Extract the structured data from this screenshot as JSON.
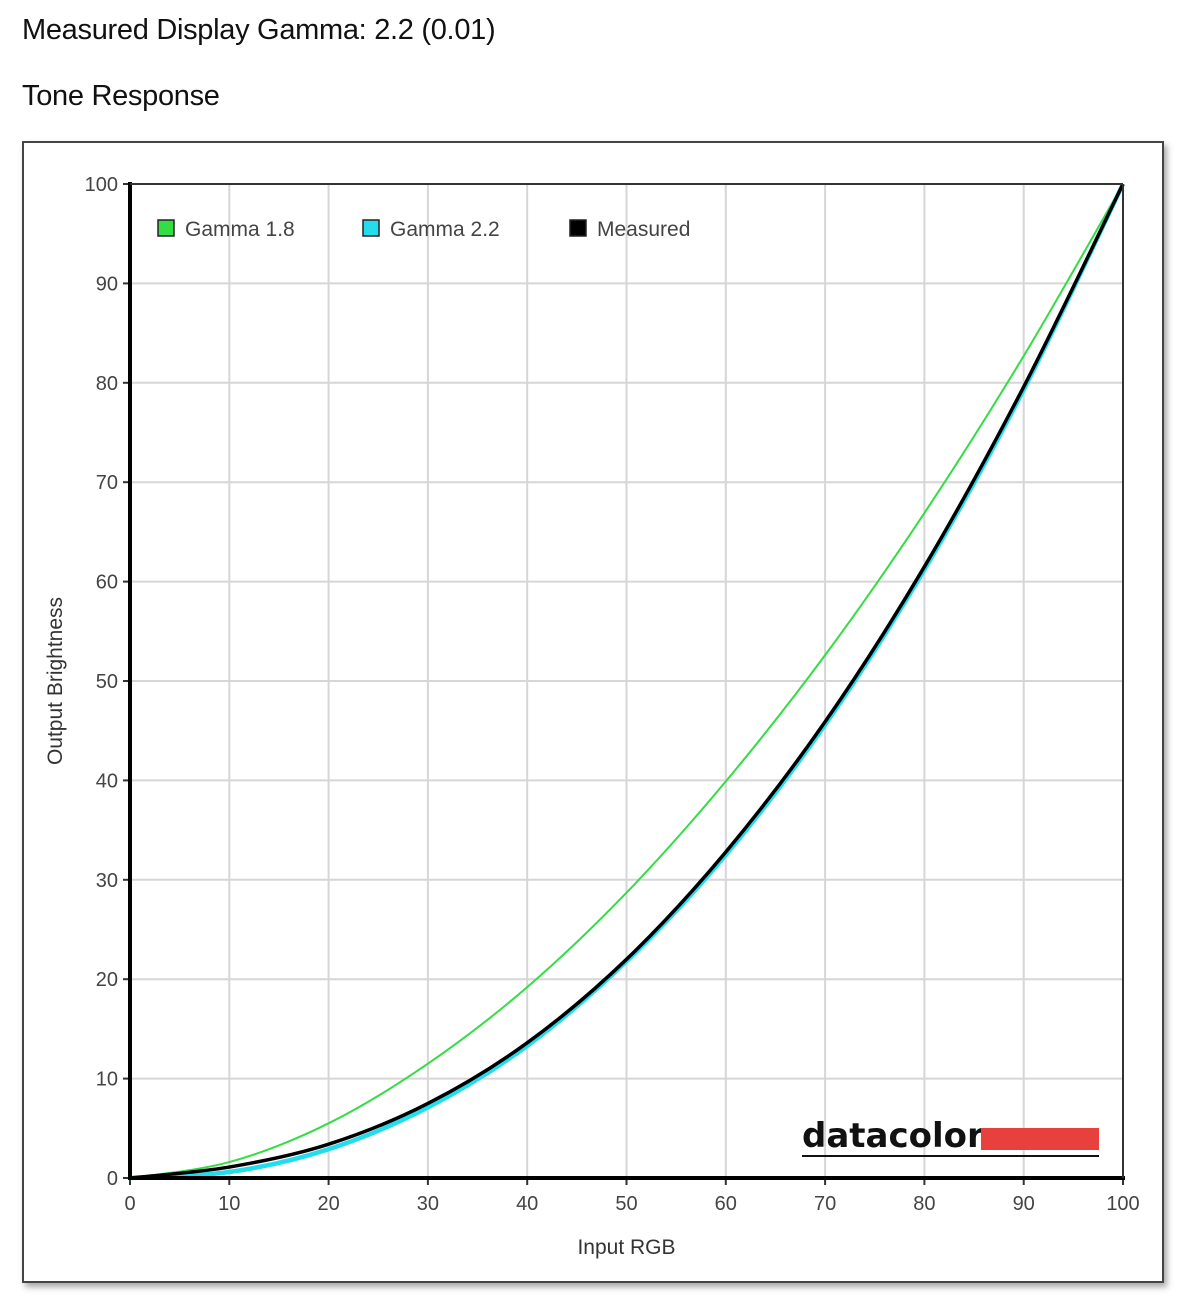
{
  "header": {
    "gamma_text": "Measured Display Gamma: 2.2 (0.01)",
    "section_title": "Tone Response"
  },
  "logo": {
    "text": "datacolor",
    "accent": "#e8403c"
  },
  "chart_data": {
    "type": "line",
    "title": "",
    "xlabel": "Input RGB",
    "ylabel": "Output Brightness",
    "xlim": [
      0,
      100
    ],
    "ylim": [
      0,
      100
    ],
    "xticks": [
      "0",
      "10",
      "20",
      "30",
      "40",
      "50",
      "60",
      "70",
      "80",
      "90",
      "100"
    ],
    "yticks": [
      "0",
      "10",
      "20",
      "30",
      "40",
      "50",
      "60",
      "70",
      "80",
      "90",
      "100"
    ],
    "grid": true,
    "legend_position": "top-left",
    "x": [
      0,
      10,
      20,
      30,
      40,
      50,
      60,
      70,
      80,
      90,
      100
    ],
    "series": [
      {
        "name": "Gamma 1.8",
        "color": "#33dd44",
        "values": [
          0,
          1.6,
          5.5,
          11.5,
          19.2,
          28.7,
          39.9,
          52.6,
          66.9,
          82.7,
          100
        ]
      },
      {
        "name": "Gamma 2.2",
        "color": "#22ddee",
        "values": [
          0,
          0.6,
          2.9,
          7.1,
          13.3,
          21.8,
          32.5,
          45.6,
          61.2,
          79.3,
          100
        ]
      },
      {
        "name": "Measured",
        "color": "#000000",
        "values": [
          0,
          1.1,
          3.4,
          7.5,
          13.6,
          22.0,
          32.8,
          45.9,
          61.5,
          79.6,
          100
        ]
      }
    ]
  }
}
